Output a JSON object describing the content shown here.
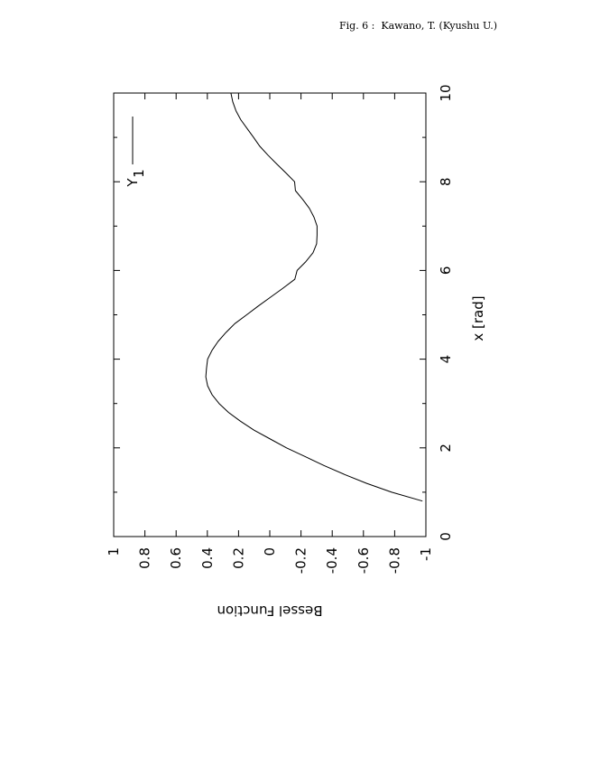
{
  "caption": "Fig. 6 :  Kawano, T. (Kyushu U.)",
  "chart_data": {
    "type": "line",
    "title": "",
    "xlabel": "x [rad]",
    "ylabel": "Bessel Function",
    "xlim": [
      0,
      10
    ],
    "ylim": [
      -1,
      1
    ],
    "x_ticks": [
      "0",
      "2",
      "4",
      "6",
      "8",
      "10"
    ],
    "y_ticks": [
      "-1",
      "-0.8",
      "-0.6",
      "-0.4",
      "-0.2",
      "0",
      "0.2",
      "0.4",
      "0.6",
      "0.8",
      "1"
    ],
    "grid": false,
    "legend_position": "top-right",
    "orientation": "rotated 90 degrees clockwise",
    "series": [
      {
        "name": "Y",
        "name_subscript": "1",
        "function": "Bessel Y1",
        "x": [
          0.8,
          1.0,
          1.2,
          1.4,
          1.6,
          1.8,
          2.0,
          2.2,
          2.4,
          2.6,
          2.8,
          3.0,
          3.2,
          3.4,
          3.6,
          3.8,
          4.0,
          4.2,
          4.4,
          4.6,
          4.8,
          5.0,
          5.2,
          5.4,
          5.6,
          5.8,
          6.0,
          6.2,
          6.4,
          6.6,
          6.8,
          7.0,
          7.2,
          7.4,
          7.6,
          7.8,
          8.0,
          8.2,
          8.4,
          8.6,
          8.8,
          9.0,
          9.2,
          9.4,
          9.6,
          9.8,
          10.0
        ],
        "y": [
          -0.978,
          -0.781,
          -0.621,
          -0.479,
          -0.348,
          -0.228,
          -0.107,
          -0.003,
          0.101,
          0.188,
          0.265,
          0.325,
          0.37,
          0.398,
          0.41,
          0.405,
          0.398,
          0.37,
          0.331,
          0.281,
          0.224,
          0.148,
          0.073,
          -0.006,
          -0.085,
          -0.16,
          -0.175,
          -0.231,
          -0.277,
          -0.3,
          -0.303,
          -0.303,
          -0.283,
          -0.254,
          -0.211,
          -0.164,
          -0.159,
          -0.103,
          -0.045,
          0.012,
          0.064,
          0.104,
          0.145,
          0.186,
          0.217,
          0.237,
          0.249
        ]
      }
    ]
  }
}
